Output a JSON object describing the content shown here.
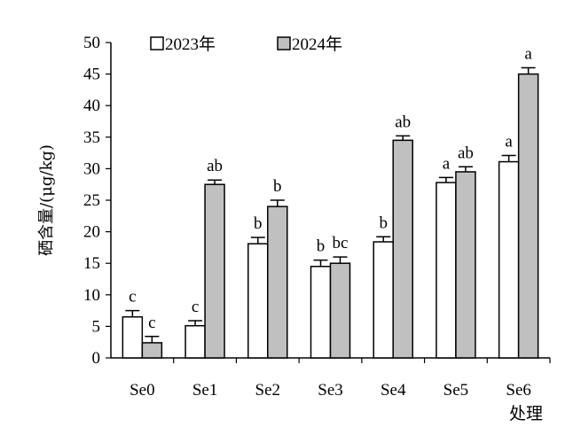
{
  "chart_data": {
    "type": "bar",
    "xlabel": "处理",
    "ylabel": "硒含量/(μg/kg)",
    "ylim": [
      0,
      50
    ],
    "yticks": [
      0,
      5,
      10,
      15,
      20,
      25,
      30,
      35,
      40,
      45,
      50
    ],
    "categories": [
      "Se0",
      "Se1",
      "Se2",
      "Se3",
      "Se4",
      "Se5",
      "Se6"
    ],
    "grid": false,
    "legend_position": "top-left",
    "series": [
      {
        "name": "2023年",
        "color": "#ffffff",
        "values": [
          6.5,
          5.1,
          18.1,
          14.5,
          18.4,
          27.8,
          31.1
        ],
        "errors": [
          1.0,
          0.8,
          1.0,
          1.0,
          0.8,
          0.8,
          1.0
        ],
        "labels": [
          "c",
          "c",
          "b",
          "b",
          "b",
          "a",
          "a"
        ]
      },
      {
        "name": "2024年",
        "color": "#c0c0c0",
        "values": [
          2.4,
          27.5,
          24.0,
          15.0,
          34.5,
          29.5,
          45.0
        ],
        "errors": [
          1.0,
          0.7,
          1.0,
          1.0,
          0.7,
          0.8,
          1.0
        ],
        "labels": [
          "c",
          "ab",
          "b",
          "bc",
          "ab",
          "ab",
          "a"
        ]
      }
    ]
  }
}
